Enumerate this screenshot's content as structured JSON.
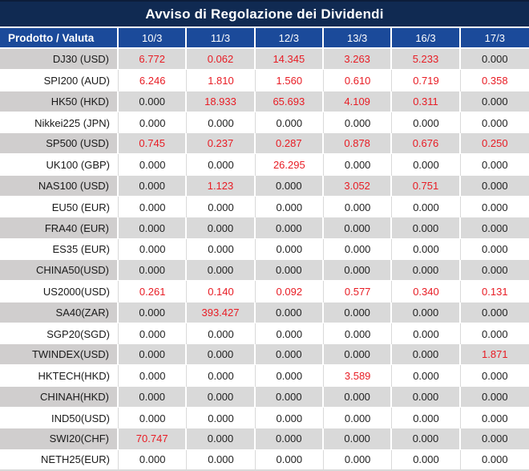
{
  "chart_data": {
    "type": "table",
    "title": "Avviso di Regolazione dei Dividendi",
    "corner_header": "Prodotto / Valuta",
    "date_columns": [
      "10/3",
      "11/3",
      "12/3",
      "13/3",
      "16/3",
      "17/3"
    ],
    "rows": [
      {
        "product": "DJ30 (USD)",
        "values": [
          "6.772",
          "0.062",
          "14.345",
          "3.263",
          "5.233",
          "0.000"
        ]
      },
      {
        "product": "SPI200 (AUD)",
        "values": [
          "6.246",
          "1.810",
          "1.560",
          "0.610",
          "0.719",
          "0.358"
        ]
      },
      {
        "product": "HK50 (HKD)",
        "values": [
          "0.000",
          "18.933",
          "65.693",
          "4.109",
          "0.311",
          "0.000"
        ]
      },
      {
        "product": "Nikkei225 (JPN)",
        "values": [
          "0.000",
          "0.000",
          "0.000",
          "0.000",
          "0.000",
          "0.000"
        ]
      },
      {
        "product": "SP500 (USD)",
        "values": [
          "0.745",
          "0.237",
          "0.287",
          "0.878",
          "0.676",
          "0.250"
        ]
      },
      {
        "product": "UK100 (GBP)",
        "values": [
          "0.000",
          "0.000",
          "26.295",
          "0.000",
          "0.000",
          "0.000"
        ]
      },
      {
        "product": "NAS100 (USD)",
        "values": [
          "0.000",
          "1.123",
          "0.000",
          "3.052",
          "0.751",
          "0.000"
        ]
      },
      {
        "product": "EU50 (EUR)",
        "values": [
          "0.000",
          "0.000",
          "0.000",
          "0.000",
          "0.000",
          "0.000"
        ]
      },
      {
        "product": "FRA40 (EUR)",
        "values": [
          "0.000",
          "0.000",
          "0.000",
          "0.000",
          "0.000",
          "0.000"
        ]
      },
      {
        "product": "ES35 (EUR)",
        "values": [
          "0.000",
          "0.000",
          "0.000",
          "0.000",
          "0.000",
          "0.000"
        ]
      },
      {
        "product": "CHINA50(USD)",
        "values": [
          "0.000",
          "0.000",
          "0.000",
          "0.000",
          "0.000",
          "0.000"
        ]
      },
      {
        "product": "US2000(USD)",
        "values": [
          "0.261",
          "0.140",
          "0.092",
          "0.577",
          "0.340",
          "0.131"
        ]
      },
      {
        "product": "SA40(ZAR)",
        "values": [
          "0.000",
          "393.427",
          "0.000",
          "0.000",
          "0.000",
          "0.000"
        ]
      },
      {
        "product": "SGP20(SGD)",
        "values": [
          "0.000",
          "0.000",
          "0.000",
          "0.000",
          "0.000",
          "0.000"
        ]
      },
      {
        "product": "TWINDEX(USD)",
        "values": [
          "0.000",
          "0.000",
          "0.000",
          "0.000",
          "0.000",
          "1.871"
        ]
      },
      {
        "product": "HKTECH(HKD)",
        "values": [
          "0.000",
          "0.000",
          "0.000",
          "3.589",
          "0.000",
          "0.000"
        ]
      },
      {
        "product": "CHINAH(HKD)",
        "values": [
          "0.000",
          "0.000",
          "0.000",
          "0.000",
          "0.000",
          "0.000"
        ]
      },
      {
        "product": "IND50(USD)",
        "values": [
          "0.000",
          "0.000",
          "0.000",
          "0.000",
          "0.000",
          "0.000"
        ]
      },
      {
        "product": "SWI20(CHF)",
        "values": [
          "70.747",
          "0.000",
          "0.000",
          "0.000",
          "0.000",
          "0.000"
        ]
      },
      {
        "product": "NETH25(EUR)",
        "values": [
          "0.000",
          "0.000",
          "0.000",
          "0.000",
          "0.000",
          "0.000"
        ]
      }
    ]
  },
  "colors": {
    "title_bar": "#102a52",
    "title_bar_top_edge": "#0c1d3a",
    "header_row": "#1b4a9a",
    "stripe_gray_values": "#d9d9d9",
    "stripe_gray_first_col": "#d0cece",
    "value_nonzero_red": "#e81c24",
    "value_zero_black": "#1f1f1f",
    "header_text": "#ffffff"
  }
}
